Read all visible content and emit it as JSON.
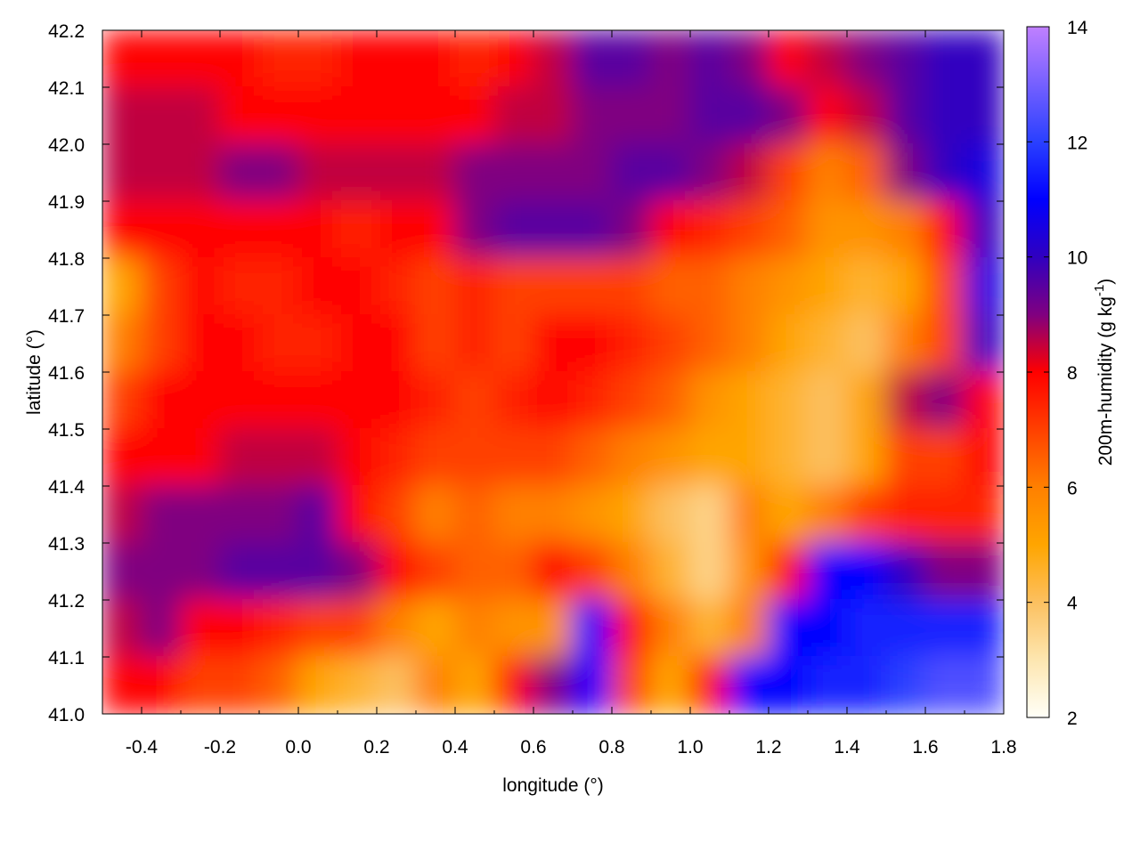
{
  "chart_data": {
    "type": "heatmap",
    "title": "",
    "xlabel": "longitude (°)",
    "ylabel": "latitude (°)",
    "colorbar_label_main": "200m-humidity (g kg",
    "colorbar_label_sup": "-1",
    "colorbar_label_close": ")",
    "xlim": [
      -0.5,
      1.8
    ],
    "ylim": [
      41.0,
      42.2
    ],
    "clim": [
      2,
      14
    ],
    "xticks": [
      "-0.4",
      "-0.2",
      "0.0",
      "0.2",
      "0.4",
      "0.6",
      "0.8",
      "1.0",
      "1.2",
      "1.4",
      "1.6",
      "1.8"
    ],
    "yticks": [
      "41.0",
      "41.1",
      "41.2",
      "41.3",
      "41.4",
      "41.5",
      "41.6",
      "41.7",
      "41.8",
      "41.9",
      "42.0",
      "42.1",
      "42.2"
    ],
    "cticks": [
      "2",
      "4",
      "6",
      "8",
      "10",
      "12",
      "14"
    ],
    "colormap": [
      [
        2,
        "#fffff8"
      ],
      [
        3,
        "#fde6b0"
      ],
      [
        4,
        "#fcc060"
      ],
      [
        5,
        "#ffa500"
      ],
      [
        6,
        "#ff8000"
      ],
      [
        7,
        "#ff4000"
      ],
      [
        8,
        "#ff0000"
      ],
      [
        9,
        "#800080"
      ],
      [
        10,
        "#3000c0"
      ],
      [
        11,
        "#0000ff"
      ],
      [
        12,
        "#2a40ff"
      ],
      [
        14,
        "#c080ff"
      ]
    ],
    "grid_lon_centers": [
      -0.45,
      -0.35,
      -0.25,
      -0.15,
      -0.05,
      0.05,
      0.15,
      0.25,
      0.35,
      0.45,
      0.55,
      0.65,
      0.75,
      0.85,
      0.95,
      1.05,
      1.15,
      1.25,
      1.35,
      1.45,
      1.55,
      1.65,
      1.75
    ],
    "grid_lat_centers": [
      42.15,
      42.05,
      41.95,
      41.85,
      41.75,
      41.65,
      41.55,
      41.45,
      41.35,
      41.25,
      41.15,
      41.05
    ],
    "values": [
      [
        8,
        8,
        8,
        8,
        7.5,
        7.5,
        8,
        8,
        8,
        7.5,
        8,
        8.5,
        9.5,
        9.5,
        9,
        9.5,
        9,
        8,
        8.5,
        9,
        9.5,
        10,
        10
      ],
      [
        8.5,
        8.5,
        8.5,
        8,
        8,
        8,
        8,
        8,
        8,
        8,
        8.5,
        8.5,
        9,
        9,
        9,
        9.5,
        9.5,
        9,
        8,
        8.5,
        9.5,
        10,
        10
      ],
      [
        8.5,
        8.5,
        8.5,
        9,
        9,
        8.5,
        8.5,
        8.5,
        8.5,
        9,
        9,
        9,
        9,
        9.5,
        9.5,
        9,
        8.5,
        7,
        6,
        6.5,
        9,
        10,
        10.5
      ],
      [
        8,
        8,
        8,
        8,
        8,
        8,
        7.5,
        8,
        8,
        9,
        9.5,
        9.5,
        9.5,
        9,
        8,
        7.5,
        7,
        6.5,
        5.5,
        5.5,
        6,
        8,
        10
      ],
      [
        5,
        7,
        8,
        7.5,
        7.5,
        8,
        8,
        7.5,
        7,
        7.5,
        7,
        7,
        7,
        7,
        6.5,
        6.5,
        6,
        5.5,
        5,
        4.5,
        5,
        7,
        10.5
      ],
      [
        6,
        7,
        8,
        8,
        7.5,
        7.5,
        8,
        8,
        7,
        7.5,
        7,
        8,
        8,
        7.5,
        7,
        6.5,
        6,
        5,
        4.5,
        4,
        6,
        7,
        10
      ],
      [
        7,
        8,
        8,
        8,
        8,
        8,
        8,
        8,
        7.5,
        7,
        7.5,
        8,
        7.5,
        7,
        6.5,
        5.5,
        5,
        4.5,
        4,
        5,
        8.5,
        9,
        8
      ],
      [
        8,
        8,
        8,
        8.5,
        8.5,
        8.5,
        8,
        7.5,
        7,
        7,
        7,
        7,
        6.5,
        6,
        5.5,
        5,
        5,
        4.5,
        4,
        5,
        7,
        7,
        8
      ],
      [
        8.5,
        9,
        9,
        9,
        9,
        9.5,
        8,
        7,
        6,
        6.5,
        6,
        6,
        5.5,
        5,
        4,
        3.5,
        6,
        5,
        6,
        7,
        7.5,
        7.5,
        7.5
      ],
      [
        9,
        9,
        9,
        9.5,
        9.5,
        9.5,
        9,
        8,
        7,
        6.5,
        6.5,
        8,
        7,
        6,
        4.5,
        3.5,
        5.5,
        8,
        11,
        11,
        10,
        9,
        9
      ],
      [
        8.5,
        9,
        8,
        8,
        7.5,
        7,
        7,
        6,
        5,
        6,
        5.5,
        5.5,
        11,
        8,
        6,
        4.5,
        6,
        11,
        11,
        11.5,
        11.5,
        11.5,
        11.5
      ],
      [
        8,
        8,
        7,
        7,
        6.5,
        5,
        4.5,
        4,
        6,
        5,
        8,
        9,
        11,
        7,
        5,
        8,
        11,
        11,
        11.5,
        11.5,
        12,
        12.5,
        12.5
      ]
    ]
  }
}
